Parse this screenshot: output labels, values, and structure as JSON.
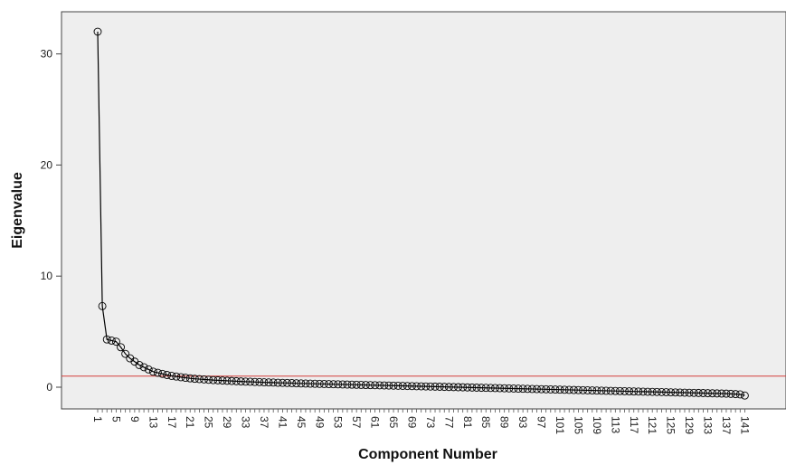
{
  "chart_data": {
    "type": "line",
    "title": "",
    "xlabel": "Component Number",
    "ylabel": "Eigenvalue",
    "xlim": [
      1,
      141
    ],
    "ylim": [
      -1.5,
      34
    ],
    "x_tick_labels": [
      "1",
      "5",
      "9",
      "13",
      "17",
      "21",
      "25",
      "29",
      "33",
      "37",
      "41",
      "45",
      "49",
      "53",
      "57",
      "61",
      "65",
      "69",
      "73",
      "77",
      "81",
      "85",
      "89",
      "93",
      "97",
      "101",
      "105",
      "109",
      "113",
      "117",
      "121",
      "125",
      "129",
      "133",
      "137",
      "141"
    ],
    "y_ticks": [
      0,
      10,
      20,
      30
    ],
    "y_tick_labels": [
      "0",
      "10",
      "20",
      "30"
    ],
    "reference_line": {
      "y": 1,
      "color": "#d43f3a"
    },
    "grid": false,
    "marker": "circle",
    "colors": {
      "plot_bg": "#eeeeee",
      "line": "#000000",
      "reference": "#d43f3a"
    },
    "series": [
      {
        "x_start": 1,
        "values": [
          32.0,
          7.3,
          4.3,
          4.2,
          4.1,
          3.6,
          3.0,
          2.6,
          2.3,
          2.0,
          1.8,
          1.6,
          1.4,
          1.3,
          1.2,
          1.1,
          1.02,
          0.96,
          0.9,
          0.85,
          0.8,
          0.76,
          0.73,
          0.7,
          0.67,
          0.64,
          0.62,
          0.6,
          0.58,
          0.56,
          0.54,
          0.52,
          0.5,
          0.49,
          0.47,
          0.46,
          0.44,
          0.43,
          0.42,
          0.4,
          0.39,
          0.38,
          0.37,
          0.35,
          0.34,
          0.33,
          0.32,
          0.31,
          0.3,
          0.29,
          0.28,
          0.27,
          0.26,
          0.25,
          0.24,
          0.23,
          0.22,
          0.21,
          0.2,
          0.19,
          0.18,
          0.17,
          0.16,
          0.15,
          0.14,
          0.13,
          0.12,
          0.11,
          0.1,
          0.09,
          0.08,
          0.07,
          0.06,
          0.05,
          0.04,
          0.03,
          0.02,
          0.01,
          0.0,
          -0.01,
          -0.02,
          -0.03,
          -0.04,
          -0.05,
          -0.06,
          -0.07,
          -0.08,
          -0.09,
          -0.1,
          -0.11,
          -0.12,
          -0.13,
          -0.14,
          -0.15,
          -0.16,
          -0.17,
          -0.18,
          -0.19,
          -0.2,
          -0.21,
          -0.22,
          -0.23,
          -0.24,
          -0.25,
          -0.26,
          -0.27,
          -0.28,
          -0.29,
          -0.3,
          -0.31,
          -0.32,
          -0.33,
          -0.34,
          -0.35,
          -0.36,
          -0.37,
          -0.38,
          -0.39,
          -0.4,
          -0.41,
          -0.42,
          -0.43,
          -0.44,
          -0.45,
          -0.46,
          -0.47,
          -0.48,
          -0.49,
          -0.5,
          -0.51,
          -0.52,
          -0.53,
          -0.54,
          -0.55,
          -0.56,
          -0.57,
          -0.58,
          -0.6,
          -0.62,
          -0.65,
          -0.75
        ]
      }
    ]
  }
}
